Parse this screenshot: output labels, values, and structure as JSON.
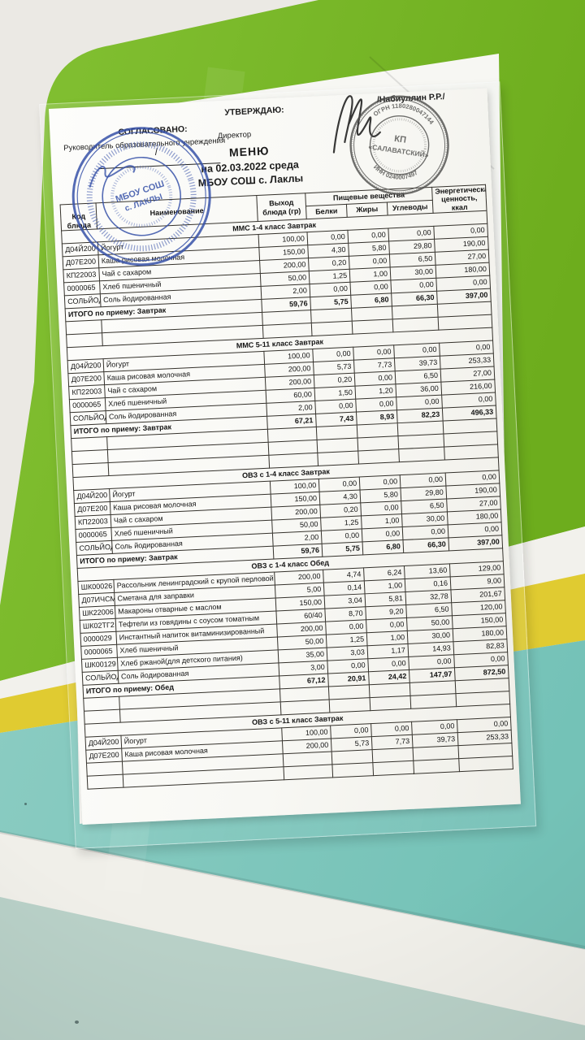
{
  "scene": {
    "colors": {
      "board_green": "#79b827",
      "stripe_white": "#f2f1ec",
      "stripe_yellow": "#e0cb31",
      "stripe_teal": "#7ec6bb",
      "wall_mint": "#b9d1c8",
      "wall_top": "#ebe9e4",
      "stamp_blue": "#3550a8",
      "stamp_grey": "#4c4c4a"
    }
  },
  "document": {
    "approval": {
      "agreed_label": "СОГЛАСОВАНО:",
      "agreed_role": "Руководитель образовательного учреждения",
      "sign_divider": "/",
      "approved_label": "УТВЕРЖДАЮ:",
      "approved_role": "Директор",
      "approver_name": "/Набиуллин Р.Р./"
    },
    "title": {
      "line1": "МЕНЮ",
      "line2": "на 02.03.2022  среда",
      "line3": "МБОУ СОШ с. Лаклы"
    },
    "stamps": {
      "school": {
        "center_line1": "МБОУ СОШ",
        "center_line2": "с. ЛАКЛЫ"
      },
      "vendor": {
        "center_line1": "КП",
        "center_line2": "«САЛАВАТСКИЙ»",
        "ring_top": "ОГРН 1180280047144",
        "ring_bottom": "ИНН 0240007497"
      }
    },
    "table": {
      "headers": {
        "code": "Код блюда",
        "name": "Наименование",
        "out": "Выход блюда (гр)",
        "group": "Пищевые вещества",
        "protein": "Белки",
        "fat": "Жиры",
        "carbs": "Углеводы",
        "energy": "Энергетическая ценность, ккал"
      },
      "sections": [
        {
          "title": "ММС 1-4 класс Завтрак",
          "rows": [
            {
              "code": "Д04Й200",
              "name": "Йогурт",
              "out": "100,00",
              "protein": "0,00",
              "fat": "0,00",
              "carbs": "0,00",
              "kcal": "0,00"
            },
            {
              "code": "Д07Е200",
              "name": "Каша рисовая молочная",
              "out": "150,00",
              "protein": "4,30",
              "fat": "5,80",
              "carbs": "29,80",
              "kcal": "190,00"
            },
            {
              "code": "КП22003",
              "name": "Чай с сахаром",
              "out": "200,00",
              "protein": "0,20",
              "fat": "0,00",
              "carbs": "6,50",
              "kcal": "27,00"
            },
            {
              "code": "0000065",
              "name": "Хлеб пшеничный",
              "out": "50,00",
              "protein": "1,25",
              "fat": "1,00",
              "carbs": "30,00",
              "kcal": "180,00"
            },
            {
              "code": "СОЛЬЙОД",
              "name": "Соль йодированная",
              "out": "2,00",
              "protein": "0,00",
              "fat": "0,00",
              "carbs": "0,00",
              "kcal": "0,00"
            }
          ],
          "total": {
            "label": "ИТОГО по приему: Завтрак",
            "out": "59,76",
            "protein": "5,75",
            "fat": "6,80",
            "carbs": "66,30",
            "kcal": "397,00"
          },
          "blank_after": 2
        },
        {
          "title": "ММС 5-11 класс Завтрак",
          "rows": [
            {
              "code": "Д04Й200",
              "name": "Йогурт",
              "out": "100,00",
              "protein": "0,00",
              "fat": "0,00",
              "carbs": "0,00",
              "kcal": "0,00"
            },
            {
              "code": "Д07Е200",
              "name": "Каша рисовая молочная",
              "out": "200,00",
              "protein": "5,73",
              "fat": "7,73",
              "carbs": "39,73",
              "kcal": "253,33"
            },
            {
              "code": "КП22003",
              "name": "Чай с сахаром",
              "out": "200,00",
              "protein": "0,20",
              "fat": "0,00",
              "carbs": "6,50",
              "kcal": "27,00"
            },
            {
              "code": "0000065",
              "name": "Хлеб пшеничный",
              "out": "60,00",
              "protein": "1,50",
              "fat": "1,20",
              "carbs": "36,00",
              "kcal": "216,00"
            },
            {
              "code": "СОЛЬЙОД",
              "name": "Соль йодированная",
              "out": "2,00",
              "protein": "0,00",
              "fat": "0,00",
              "carbs": "0,00",
              "kcal": "0,00"
            }
          ],
          "total": {
            "label": "ИТОГО по приему: Завтрак",
            "out": "67,21",
            "protein": "7,43",
            "fat": "8,93",
            "carbs": "82,23",
            "kcal": "496,33"
          },
          "blank_after": 3
        },
        {
          "title": "ОВЗ с 1-4 класс Завтрак",
          "rows": [
            {
              "code": "Д04Й200",
              "name": "Йогурт",
              "out": "100,00",
              "protein": "0,00",
              "fat": "0,00",
              "carbs": "0,00",
              "kcal": "0,00"
            },
            {
              "code": "Д07Е200",
              "name": "Каша рисовая молочная",
              "out": "150,00",
              "protein": "4,30",
              "fat": "5,80",
              "carbs": "29,80",
              "kcal": "190,00"
            },
            {
              "code": "КП22003",
              "name": "Чай с сахаром",
              "out": "200,00",
              "protein": "0,20",
              "fat": "0,00",
              "carbs": "6,50",
              "kcal": "27,00"
            },
            {
              "code": "0000065",
              "name": "Хлеб пшеничный",
              "out": "50,00",
              "protein": "1,25",
              "fat": "1,00",
              "carbs": "30,00",
              "kcal": "180,00"
            },
            {
              "code": "СОЛЬЙОД",
              "name": "Соль йодированная",
              "out": "2,00",
              "protein": "0,00",
              "fat": "0,00",
              "carbs": "0,00",
              "kcal": "0,00"
            }
          ],
          "total": {
            "label": "ИТОГО по приему: Завтрак",
            "out": "59,76",
            "protein": "5,75",
            "fat": "6,80",
            "carbs": "66,30",
            "kcal": "397,00"
          },
          "blank_after": 0
        },
        {
          "title": "ОВЗ с 1-4 класс Обед",
          "rows": [
            {
              "code": "ШК00026",
              "name": "Рассольник ленинградский с крупой перловой",
              "out": "200,00",
              "protein": "4,74",
              "fat": "6,24",
              "carbs": "13,60",
              "kcal": "129,00"
            },
            {
              "code": "Д07ИЧСМ",
              "name": "Сметана для заправки",
              "out": "5,00",
              "protein": "0,14",
              "fat": "1,00",
              "carbs": "0,16",
              "kcal": "9,00"
            },
            {
              "code": "ШК22006",
              "name": "Макароны отварные с маслом",
              "out": "150,00",
              "protein": "3,04",
              "fat": "5,81",
              "carbs": "32,78",
              "kcal": "201,67"
            },
            {
              "code": "ШК02ТГ2",
              "name": "Тефтели из говядины с соусом томатным",
              "out": "60/40",
              "protein": "8,70",
              "fat": "9,20",
              "carbs": "6,50",
              "kcal": "120,00"
            },
            {
              "code": "0000029",
              "name": "Инстантный напиток витаминизированный",
              "out": "200,00",
              "protein": "0,00",
              "fat": "0,00",
              "carbs": "50,00",
              "kcal": "150,00"
            },
            {
              "code": "0000065",
              "name": "Хлеб пшеничный",
              "out": "50,00",
              "protein": "1,25",
              "fat": "1,00",
              "carbs": "30,00",
              "kcal": "180,00"
            },
            {
              "code": "ШК00129",
              "name": "Хлеб ржаной(для детского питания)",
              "out": "35,00",
              "protein": "3,03",
              "fat": "1,17",
              "carbs": "14,93",
              "kcal": "82,83"
            },
            {
              "code": "СОЛЬЙОД",
              "name": "Соль йодированная",
              "out": "3,00",
              "protein": "0,00",
              "fat": "0,00",
              "carbs": "0,00",
              "kcal": "0,00"
            }
          ],
          "total": {
            "label": "ИТОГО по приему: Обед",
            "out": "67,12",
            "protein": "20,91",
            "fat": "24,42",
            "carbs": "147,97",
            "kcal": "872,50"
          },
          "blank_after": 2
        },
        {
          "title": "ОВЗ с 5-11 класс Завтрак",
          "rows": [
            {
              "code": "Д04Й200",
              "name": "Йогурт",
              "out": "100,00",
              "protein": "0,00",
              "fat": "0,00",
              "carbs": "0,00",
              "kcal": "0,00"
            },
            {
              "code": "Д07Е200",
              "name": "Каша рисовая молочная",
              "out": "200,00",
              "protein": "5,73",
              "fat": "7,73",
              "carbs": "39,73",
              "kcal": "253,33"
            }
          ],
          "total": null,
          "blank_after": 2
        }
      ]
    }
  }
}
